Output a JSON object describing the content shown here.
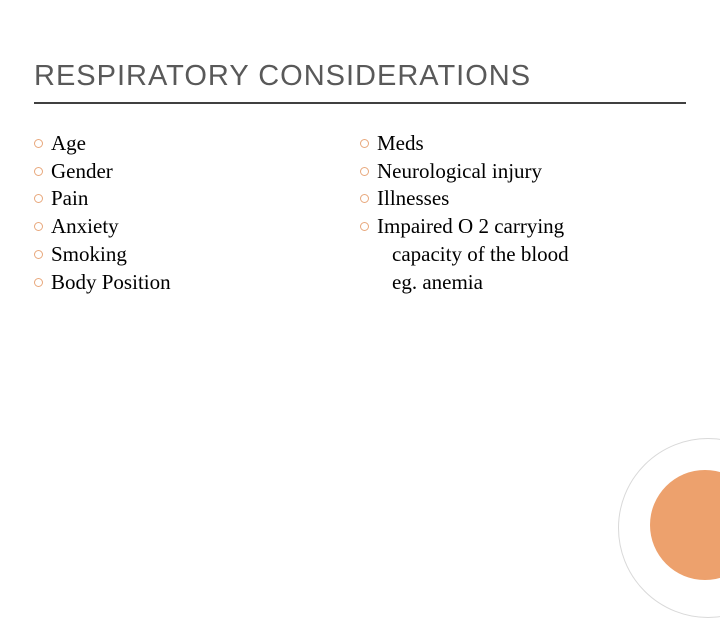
{
  "title": "RESPIRATORY CONSIDERATIONS",
  "colors": {
    "title_text": "#595959",
    "body_text": "#000000",
    "bullet_ring": "#e8a87c",
    "underline": "#404040",
    "corner_circle": "#eda16d",
    "corner_arc": "#d9d9d9",
    "background": "#ffffff"
  },
  "typography": {
    "title_font": "Arial",
    "title_size_pt": 22,
    "body_font": "Georgia",
    "body_size_pt": 16
  },
  "left_column": [
    {
      "text": "Age"
    },
    {
      "text": "Gender"
    },
    {
      "text": "Pain"
    },
    {
      "text": "Anxiety"
    },
    {
      "text": "Smoking"
    },
    {
      "text": "Body Position"
    }
  ],
  "right_column": [
    {
      "text": "Meds"
    },
    {
      "text": "Neurological injury"
    },
    {
      "text": "Illnesses"
    },
    {
      "text": "Impaired O 2 carrying",
      "sublines": [
        "capacity of the blood",
        " eg. anemia"
      ]
    }
  ]
}
